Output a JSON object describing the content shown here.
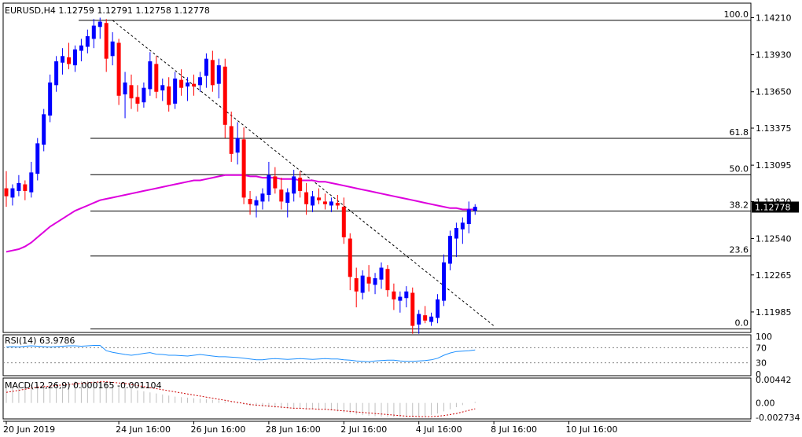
{
  "symbol_header": "EURUSD,H4  1.12759 1.12791 1.12758 1.12778",
  "colors": {
    "bull": "#0000ff",
    "bear": "#ff0000",
    "ma": "#dd00dd",
    "rsi": "#1e90ff",
    "macd_hist": "#c0c0c0",
    "macd_signal": "#cc0000",
    "grid": "#000000",
    "price_tag_bg": "#000000",
    "price_tag_text": "#ffffff"
  },
  "chart_data": [
    {
      "type": "candlestick",
      "title": "EURUSD,H4  1.12759 1.12791 1.12758 1.12778",
      "ylim": [
        1.1183,
        1.1432
      ],
      "y_ticks": [
        "1.14210",
        "1.13930",
        "1.13650",
        "1.13375",
        "1.13095",
        "1.12820",
        "1.12540",
        "1.12265",
        "1.11985"
      ],
      "y_tick_values": [
        1.1421,
        1.1393,
        1.1365,
        1.13375,
        1.13095,
        1.1282,
        1.1254,
        1.12265,
        1.11985
      ],
      "x_ticks": [
        "20 Jun 2019",
        "24 Jun 16:00",
        "26 Jun 16:00",
        "28 Jun 16:00",
        "2 Jul 16:00",
        "4 Jul 16:00",
        "8 Jul 16:00",
        "10 Jul 16:00"
      ],
      "x_tick_index": [
        0,
        18,
        30,
        42,
        54,
        66,
        78,
        90
      ],
      "last_price": "1.12778",
      "fibonacci": {
        "levels": [
          {
            "label": "100.0",
            "value": 1.1419
          },
          {
            "label": "61.8",
            "value": 1.13298
          },
          {
            "label": "50.0",
            "value": 1.13023
          },
          {
            "label": "38.2",
            "value": 1.12748
          },
          {
            "label": "23.6",
            "value": 1.12408
          },
          {
            "label": "0.0",
            "value": 1.11857
          }
        ]
      },
      "trendline": {
        "from": [
          17,
          1.1419
        ],
        "to": [
          78,
          1.1188
        ]
      },
      "candles": [
        [
          1.1292,
          1.1305,
          1.1278,
          1.1286
        ],
        [
          1.1285,
          1.1295,
          1.1279,
          1.1292
        ],
        [
          1.129,
          1.1302,
          1.1286,
          1.1296
        ],
        [
          1.1295,
          1.1298,
          1.1283,
          1.129
        ],
        [
          1.1289,
          1.1312,
          1.1285,
          1.1304
        ],
        [
          1.1303,
          1.133,
          1.1298,
          1.1326
        ],
        [
          1.1325,
          1.1352,
          1.132,
          1.1348
        ],
        [
          1.1347,
          1.1378,
          1.1342,
          1.1372
        ],
        [
          1.137,
          1.1392,
          1.1365,
          1.1388
        ],
        [
          1.1387,
          1.1398,
          1.1378,
          1.1392
        ],
        [
          1.1391,
          1.1402,
          1.1382,
          1.1386
        ],
        [
          1.1385,
          1.14,
          1.138,
          1.1397
        ],
        [
          1.1396,
          1.1405,
          1.1388,
          1.14
        ],
        [
          1.1399,
          1.1412,
          1.1394,
          1.1407
        ],
        [
          1.1405,
          1.142,
          1.1398,
          1.1415
        ],
        [
          1.1414,
          1.1421,
          1.1405,
          1.1418
        ],
        [
          1.1417,
          1.142,
          1.138,
          1.139
        ],
        [
          1.1392,
          1.141,
          1.1385,
          1.1403
        ],
        [
          1.1402,
          1.1405,
          1.1355,
          1.1362
        ],
        [
          1.1363,
          1.138,
          1.1345,
          1.1372
        ],
        [
          1.137,
          1.1378,
          1.1352,
          1.136
        ],
        [
          1.1361,
          1.137,
          1.135,
          1.1356
        ],
        [
          1.1357,
          1.1372,
          1.1353,
          1.1368
        ],
        [
          1.1367,
          1.1395,
          1.1362,
          1.1388
        ],
        [
          1.1386,
          1.1392,
          1.136,
          1.1365
        ],
        [
          1.1366,
          1.1375,
          1.1358,
          1.137
        ],
        [
          1.1369,
          1.1376,
          1.135,
          1.1355
        ],
        [
          1.1356,
          1.138,
          1.1352,
          1.1375
        ],
        [
          1.1374,
          1.1382,
          1.1362,
          1.1368
        ],
        [
          1.1369,
          1.1376,
          1.1358,
          1.1372
        ],
        [
          1.1371,
          1.1378,
          1.1362,
          1.1369
        ],
        [
          1.137,
          1.138,
          1.1365,
          1.1376
        ],
        [
          1.1377,
          1.1394,
          1.1368,
          1.139
        ],
        [
          1.1389,
          1.1396,
          1.1365,
          1.137
        ],
        [
          1.1371,
          1.139,
          1.136,
          1.1385
        ],
        [
          1.1384,
          1.139,
          1.133,
          1.134
        ],
        [
          1.1339,
          1.135,
          1.1312,
          1.1318
        ],
        [
          1.1319,
          1.1342,
          1.131,
          1.133
        ],
        [
          1.1329,
          1.1338,
          1.128,
          1.1285
        ],
        [
          1.1284,
          1.129,
          1.1272,
          1.128
        ],
        [
          1.1279,
          1.1286,
          1.127,
          1.1283
        ],
        [
          1.1282,
          1.1292,
          1.1276,
          1.1288
        ],
        [
          1.1287,
          1.1312,
          1.1282,
          1.1302
        ],
        [
          1.1301,
          1.1308,
          1.1288,
          1.1292
        ],
        [
          1.1291,
          1.13,
          1.1276,
          1.1282
        ],
        [
          1.1281,
          1.1292,
          1.127,
          1.1289
        ],
        [
          1.1288,
          1.1306,
          1.1282,
          1.1301
        ],
        [
          1.13,
          1.1305,
          1.1285,
          1.129
        ],
        [
          1.1289,
          1.1296,
          1.1272,
          1.128
        ],
        [
          1.1279,
          1.129,
          1.1274,
          1.1286
        ],
        [
          1.1285,
          1.1292,
          1.128,
          1.1283
        ],
        [
          1.1282,
          1.1288,
          1.1276,
          1.128
        ],
        [
          1.1279,
          1.1285,
          1.1274,
          1.1282
        ],
        [
          1.1281,
          1.1287,
          1.1276,
          1.1279
        ],
        [
          1.1278,
          1.1285,
          1.125,
          1.1255
        ],
        [
          1.1254,
          1.1258,
          1.1215,
          1.1225
        ],
        [
          1.1224,
          1.1232,
          1.1202,
          1.1214
        ],
        [
          1.1213,
          1.123,
          1.1208,
          1.1226
        ],
        [
          1.1225,
          1.1234,
          1.1214,
          1.122
        ],
        [
          1.1219,
          1.1228,
          1.1212,
          1.1224
        ],
        [
          1.1223,
          1.1236,
          1.1216,
          1.1232
        ],
        [
          1.1231,
          1.1234,
          1.121,
          1.1215
        ],
        [
          1.1214,
          1.122,
          1.12,
          1.1208
        ],
        [
          1.1207,
          1.1214,
          1.1198,
          1.121
        ],
        [
          1.1209,
          1.1218,
          1.1202,
          1.1214
        ],
        [
          1.1213,
          1.1217,
          1.1182,
          1.1188
        ],
        [
          1.1189,
          1.12,
          1.1182,
          1.1197
        ],
        [
          1.1196,
          1.1203,
          1.119,
          1.1192
        ],
        [
          1.1191,
          1.1198,
          1.1188,
          1.1195
        ],
        [
          1.1194,
          1.1212,
          1.119,
          1.1208
        ],
        [
          1.1207,
          1.1242,
          1.1203,
          1.1236
        ],
        [
          1.1235,
          1.126,
          1.123,
          1.1256
        ],
        [
          1.1254,
          1.1266,
          1.124,
          1.1262
        ],
        [
          1.1261,
          1.127,
          1.125,
          1.1266
        ],
        [
          1.1265,
          1.1282,
          1.1258,
          1.1276
        ],
        [
          1.1275,
          1.128,
          1.1272,
          1.1278
        ]
      ],
      "ma_series": [
        1.1244,
        1.1245,
        1.1246,
        1.1248,
        1.1251,
        1.1255,
        1.1259,
        1.1263,
        1.1266,
        1.1269,
        1.1272,
        1.1275,
        1.1277,
        1.1279,
        1.1281,
        1.1283,
        1.1284,
        1.1285,
        1.1286,
        1.1287,
        1.1288,
        1.1289,
        1.129,
        1.1291,
        1.1292,
        1.1293,
        1.1294,
        1.1295,
        1.1296,
        1.1297,
        1.1298,
        1.1298,
        1.1299,
        1.13,
        1.1301,
        1.1302,
        1.1302,
        1.1302,
        1.1302,
        1.1301,
        1.1301,
        1.13,
        1.13,
        1.13,
        1.1299,
        1.1299,
        1.1299,
        1.1298,
        1.1298,
        1.1298,
        1.1297,
        1.1297,
        1.1296,
        1.1295,
        1.1294,
        1.1293,
        1.1292,
        1.1291,
        1.129,
        1.1289,
        1.1288,
        1.1287,
        1.1286,
        1.1285,
        1.1284,
        1.1283,
        1.1282,
        1.1281,
        1.128,
        1.1279,
        1.1278,
        1.1277,
        1.1277,
        1.1276,
        1.1276,
        1.1276
      ]
    },
    {
      "type": "line",
      "title": "RSI(14) 63.9786",
      "ylim": [
        0,
        100
      ],
      "y_ticks": [
        "100",
        "70",
        "30",
        "0"
      ],
      "y_tick_values": [
        100,
        70,
        30,
        0
      ],
      "values": [
        72,
        73,
        72,
        74,
        75,
        74,
        73,
        72,
        73,
        74,
        75,
        75,
        74,
        75,
        76,
        76,
        62,
        58,
        55,
        52,
        50,
        52,
        55,
        57,
        53,
        52,
        50,
        50,
        49,
        48,
        50,
        52,
        50,
        48,
        46,
        46,
        45,
        44,
        42,
        40,
        38,
        38,
        40,
        41,
        40,
        39,
        40,
        41,
        40,
        39,
        40,
        41,
        40,
        40,
        38,
        37,
        35,
        34,
        33,
        35,
        36,
        37,
        37,
        35,
        34,
        34,
        35,
        36,
        38,
        42,
        50,
        56,
        60,
        61,
        62,
        64
      ]
    },
    {
      "type": "bar",
      "title": "MACD(12,26,9) 0.000165 -0.001104",
      "ylim": [
        -0.00273,
        0.00442
      ],
      "y_ticks": [
        "0.00442",
        "0.00",
        "-0.002734"
      ],
      "y_tick_values": [
        0.00442,
        0.0,
        -0.002734
      ],
      "values": [
        0.003,
        0.0031,
        0.0032,
        0.0033,
        0.0034,
        0.0035,
        0.0036,
        0.0037,
        0.0038,
        0.0039,
        0.004,
        0.0041,
        0.0041,
        0.0042,
        0.0042,
        0.0042,
        0.0039,
        0.0036,
        0.0033,
        0.003,
        0.0027,
        0.0024,
        0.0022,
        0.002,
        0.0018,
        0.0016,
        0.0014,
        0.0012,
        0.0011,
        0.001,
        0.0009,
        0.0008,
        0.0007,
        0.0006,
        0.0005,
        0.0003,
        0.0001,
        -0.0001,
        -0.0003,
        -0.0005,
        -0.0006,
        -0.0007,
        -0.0008,
        -0.0009,
        -0.001,
        -0.001,
        -0.0011,
        -0.0011,
        -0.0012,
        -0.0012,
        -0.0013,
        -0.0013,
        -0.0014,
        -0.0016,
        -0.0018,
        -0.002,
        -0.0022,
        -0.0023,
        -0.0024,
        -0.0025,
        -0.0026,
        -0.0026,
        -0.0027,
        -0.0027,
        -0.0027,
        -0.0027,
        -0.0026,
        -0.0025,
        -0.0023,
        -0.002,
        -0.0016,
        -0.0012,
        -0.0008,
        -0.0004,
        0.0,
        0.0002
      ],
      "signal": [
        0.002,
        0.0022,
        0.0024,
        0.0026,
        0.0028,
        0.003,
        0.0031,
        0.0032,
        0.0033,
        0.0034,
        0.0035,
        0.0036,
        0.0037,
        0.0038,
        0.0039,
        0.004,
        0.004,
        0.0039,
        0.0038,
        0.0037,
        0.0035,
        0.0033,
        0.0031,
        0.0029,
        0.0027,
        0.0025,
        0.0023,
        0.0021,
        0.0019,
        0.0017,
        0.0015,
        0.0013,
        0.0011,
        0.0009,
        0.0007,
        0.0005,
        0.0003,
        0.0001,
        -0.0001,
        -0.0003,
        -0.0004,
        -0.0005,
        -0.0006,
        -0.0007,
        -0.0008,
        -0.0009,
        -0.001,
        -0.001,
        -0.0011,
        -0.0011,
        -0.0012,
        -0.0012,
        -0.0013,
        -0.0014,
        -0.0015,
        -0.0016,
        -0.0017,
        -0.0018,
        -0.0019,
        -0.002,
        -0.0021,
        -0.0022,
        -0.0023,
        -0.0024,
        -0.0025,
        -0.0025,
        -0.0026,
        -0.0026,
        -0.0026,
        -0.0025,
        -0.0024,
        -0.0022,
        -0.002,
        -0.0017,
        -0.0014,
        -0.0011
      ]
    }
  ]
}
